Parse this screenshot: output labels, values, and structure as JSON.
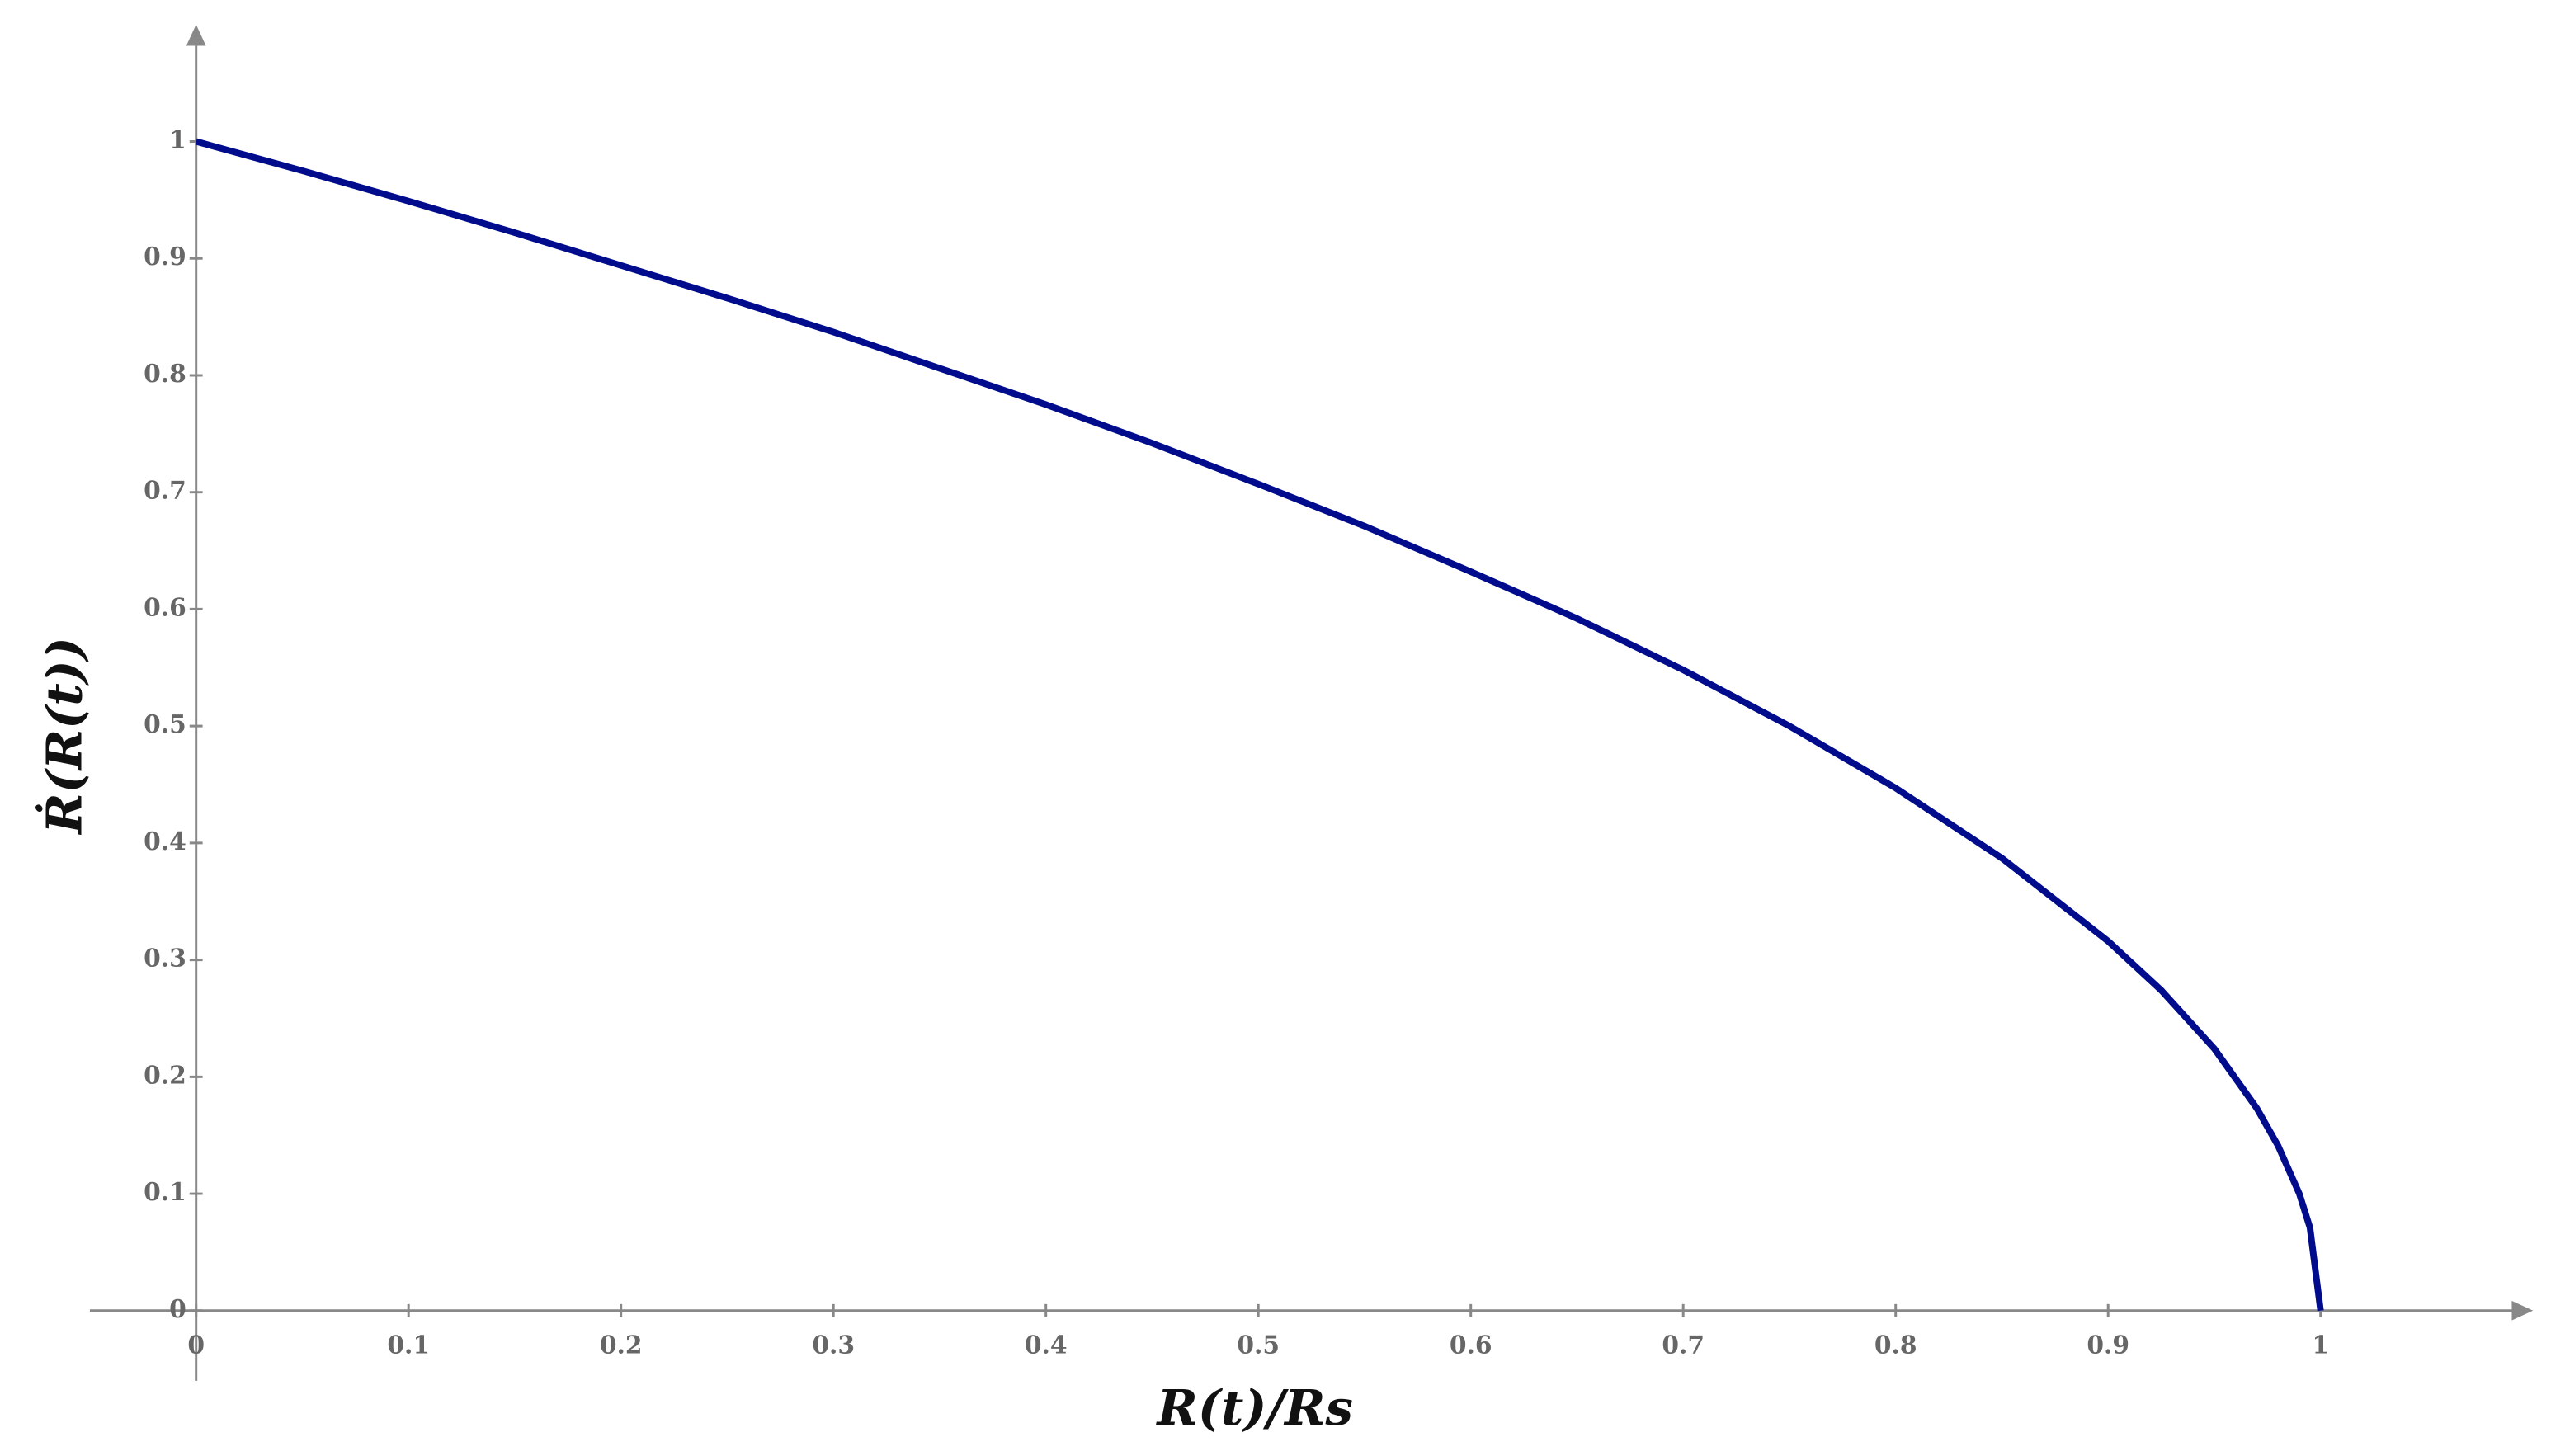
{
  "chart_data": {
    "type": "line",
    "xlabel": "R(t)/Rs",
    "ylabel": "Ṙ(R(t))",
    "x": [
      0,
      0.05,
      0.1,
      0.15,
      0.2,
      0.25,
      0.3,
      0.35,
      0.4,
      0.45,
      0.5,
      0.55,
      0.6,
      0.65,
      0.7,
      0.75,
      0.8,
      0.85,
      0.9,
      0.925,
      0.95,
      0.97,
      0.98,
      0.99,
      0.995,
      1
    ],
    "series": [
      {
        "color": "#000c8c",
        "values": [
          1,
          0.975,
          0.949,
          0.922,
          0.894,
          0.866,
          0.837,
          0.806,
          0.775,
          0.742,
          0.707,
          0.671,
          0.632,
          0.592,
          0.548,
          0.5,
          0.447,
          0.387,
          0.316,
          0.274,
          0.224,
          0.173,
          0.141,
          0.1,
          0.071,
          0
        ]
      }
    ],
    "xlim": [
      -0.05,
      1.1
    ],
    "ylim": [
      -0.06,
      1.1
    ],
    "xticks": [
      0,
      0.1,
      0.2,
      0.3,
      0.4,
      0.5,
      0.6,
      0.7,
      0.8,
      0.9,
      1
    ],
    "yticks": [
      0,
      0.1,
      0.2,
      0.3,
      0.4,
      0.5,
      0.6,
      0.7,
      0.8,
      0.9,
      1
    ]
  }
}
